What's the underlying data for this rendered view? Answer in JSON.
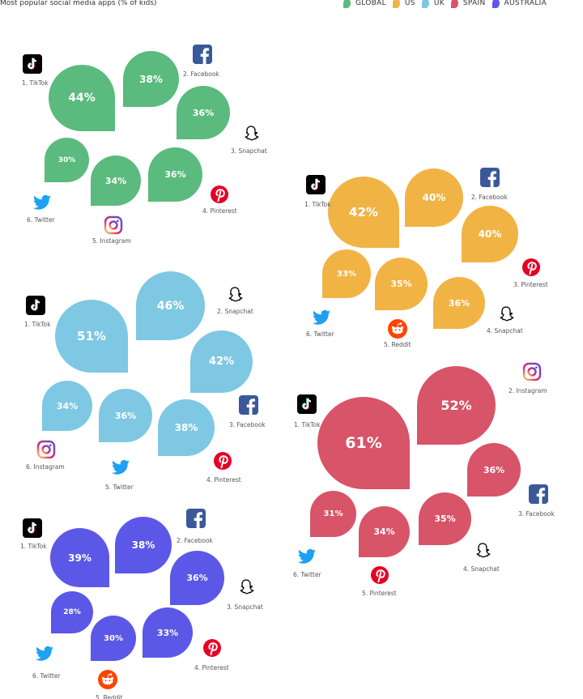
{
  "title": "Most popular social media apps  (% of kids)",
  "legend": [
    {
      "label": "GLOBAL",
      "color": "#5bba7d"
    },
    {
      "label": "US",
      "color": "#f2b345"
    },
    {
      "label": "UK",
      "color": "#7ec8e3"
    },
    {
      "label": "SPAIN",
      "color": "#d85468"
    },
    {
      "label": "AUSTRALIA",
      "color": "#5b58e8"
    }
  ],
  "chart_data": [
    {
      "type": "bubble",
      "region": "GLOBAL",
      "color": "#5bba7d",
      "items": [
        {
          "label": "1. TikTok",
          "icon": "tiktok-icon",
          "value": "44%"
        },
        {
          "label": "2. Facebook",
          "icon": "facebook-icon",
          "value": "38%"
        },
        {
          "label": "3. Snapchat",
          "icon": "snapchat-icon",
          "value": "36%"
        },
        {
          "label": "4. Pinterest",
          "icon": "pinterest-icon",
          "value": "36%"
        },
        {
          "label": "5. Instagram",
          "icon": "instagram-icon",
          "value": "34%"
        },
        {
          "label": "6. Twitter",
          "icon": "twitter-icon",
          "value": "30%"
        }
      ]
    },
    {
      "type": "bubble",
      "region": "US",
      "color": "#f2b345",
      "items": [
        {
          "label": "1. TikTok",
          "icon": "tiktok-icon",
          "value": "42%"
        },
        {
          "label": "2. Facebook",
          "icon": "facebook-icon",
          "value": "40%"
        },
        {
          "label": "3. Pinterest",
          "icon": "pinterest-icon",
          "value": "40%"
        },
        {
          "label": "4. Snapchat",
          "icon": "snapchat-icon",
          "value": "36%"
        },
        {
          "label": "5. Reddit",
          "icon": "reddit-icon",
          "value": "35%"
        },
        {
          "label": "6. Twitter",
          "icon": "twitter-icon",
          "value": "33%"
        }
      ]
    },
    {
      "type": "bubble",
      "region": "UK",
      "color": "#7ec8e3",
      "items": [
        {
          "label": "1. TikTok",
          "icon": "tiktok-icon",
          "value": "51%"
        },
        {
          "label": "2. Snapchat",
          "icon": "snapchat-icon",
          "value": "46%"
        },
        {
          "label": "3. Facebook",
          "icon": "facebook-icon",
          "value": "42%"
        },
        {
          "label": "4. Pinterest",
          "icon": "pinterest-icon",
          "value": "38%"
        },
        {
          "label": "5. Twitter",
          "icon": "twitter-icon",
          "value": "36%"
        },
        {
          "label": "6. Instagram",
          "icon": "instagram-icon",
          "value": "34%"
        }
      ]
    },
    {
      "type": "bubble",
      "region": "SPAIN",
      "color": "#d85468",
      "items": [
        {
          "label": "1. TikTok",
          "icon": "tiktok-icon",
          "value": "61%"
        },
        {
          "label": "2. Instagram",
          "icon": "instagram-icon",
          "value": "52%"
        },
        {
          "label": "3. Facebook",
          "icon": "facebook-icon",
          "value": "36%"
        },
        {
          "label": "4. Snapchat",
          "icon": "snapchat-icon",
          "value": "35%"
        },
        {
          "label": "5. Pinterest",
          "icon": "pinterest-icon",
          "value": "34%"
        },
        {
          "label": "6. Twitter",
          "icon": "twitter-icon",
          "value": "31%"
        }
      ]
    },
    {
      "type": "bubble",
      "region": "AUSTRALIA",
      "color": "#5b58e8",
      "items": [
        {
          "label": "1. TikTok",
          "icon": "tiktok-icon",
          "value": "39%"
        },
        {
          "label": "2. Facebook",
          "icon": "facebook-icon",
          "value": "38%"
        },
        {
          "label": "3. Snapchat",
          "icon": "snapchat-icon",
          "value": "36%"
        },
        {
          "label": "4. Pinterest",
          "icon": "pinterest-icon",
          "value": "33%"
        },
        {
          "label": "5. Reddit",
          "icon": "reddit-icon",
          "value": "30%"
        },
        {
          "label": "6. Twitter",
          "icon": "twitter-icon",
          "value": "28%"
        }
      ]
    }
  ]
}
